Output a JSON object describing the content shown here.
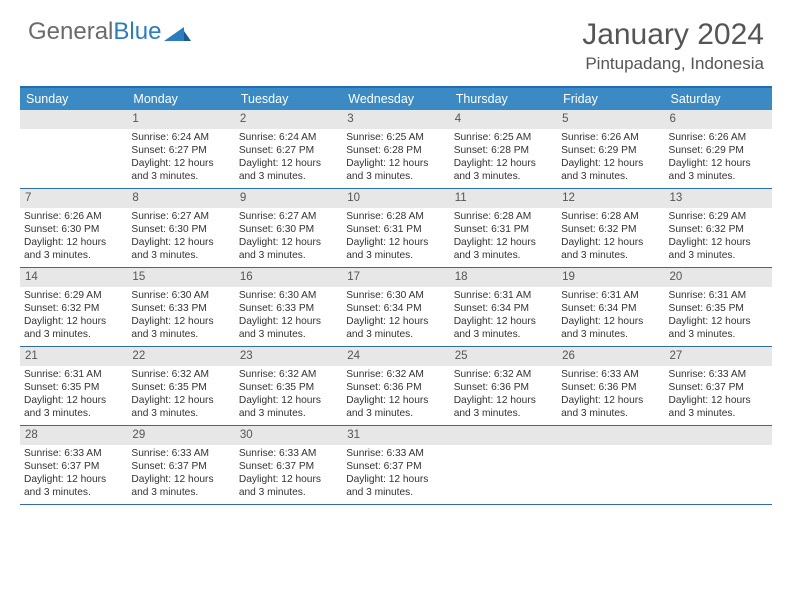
{
  "brand": {
    "part1": "General",
    "part2": "Blue"
  },
  "title": "January 2024",
  "location": "Pintupadang, Indonesia",
  "colors": {
    "header_bg": "#3b8ac4",
    "border": "#2f6fa8",
    "daynum_bg": "#e7e7e7",
    "text": "#333333",
    "title_text": "#555555"
  },
  "weekdays": [
    "Sunday",
    "Monday",
    "Tuesday",
    "Wednesday",
    "Thursday",
    "Friday",
    "Saturday"
  ],
  "start_offset": 1,
  "days": [
    {
      "n": 1,
      "sr": "6:24 AM",
      "ss": "6:27 PM",
      "dl": "12 hours and 3 minutes."
    },
    {
      "n": 2,
      "sr": "6:24 AM",
      "ss": "6:27 PM",
      "dl": "12 hours and 3 minutes."
    },
    {
      "n": 3,
      "sr": "6:25 AM",
      "ss": "6:28 PM",
      "dl": "12 hours and 3 minutes."
    },
    {
      "n": 4,
      "sr": "6:25 AM",
      "ss": "6:28 PM",
      "dl": "12 hours and 3 minutes."
    },
    {
      "n": 5,
      "sr": "6:26 AM",
      "ss": "6:29 PM",
      "dl": "12 hours and 3 minutes."
    },
    {
      "n": 6,
      "sr": "6:26 AM",
      "ss": "6:29 PM",
      "dl": "12 hours and 3 minutes."
    },
    {
      "n": 7,
      "sr": "6:26 AM",
      "ss": "6:30 PM",
      "dl": "12 hours and 3 minutes."
    },
    {
      "n": 8,
      "sr": "6:27 AM",
      "ss": "6:30 PM",
      "dl": "12 hours and 3 minutes."
    },
    {
      "n": 9,
      "sr": "6:27 AM",
      "ss": "6:30 PM",
      "dl": "12 hours and 3 minutes."
    },
    {
      "n": 10,
      "sr": "6:28 AM",
      "ss": "6:31 PM",
      "dl": "12 hours and 3 minutes."
    },
    {
      "n": 11,
      "sr": "6:28 AM",
      "ss": "6:31 PM",
      "dl": "12 hours and 3 minutes."
    },
    {
      "n": 12,
      "sr": "6:28 AM",
      "ss": "6:32 PM",
      "dl": "12 hours and 3 minutes."
    },
    {
      "n": 13,
      "sr": "6:29 AM",
      "ss": "6:32 PM",
      "dl": "12 hours and 3 minutes."
    },
    {
      "n": 14,
      "sr": "6:29 AM",
      "ss": "6:32 PM",
      "dl": "12 hours and 3 minutes."
    },
    {
      "n": 15,
      "sr": "6:30 AM",
      "ss": "6:33 PM",
      "dl": "12 hours and 3 minutes."
    },
    {
      "n": 16,
      "sr": "6:30 AM",
      "ss": "6:33 PM",
      "dl": "12 hours and 3 minutes."
    },
    {
      "n": 17,
      "sr": "6:30 AM",
      "ss": "6:34 PM",
      "dl": "12 hours and 3 minutes."
    },
    {
      "n": 18,
      "sr": "6:31 AM",
      "ss": "6:34 PM",
      "dl": "12 hours and 3 minutes."
    },
    {
      "n": 19,
      "sr": "6:31 AM",
      "ss": "6:34 PM",
      "dl": "12 hours and 3 minutes."
    },
    {
      "n": 20,
      "sr": "6:31 AM",
      "ss": "6:35 PM",
      "dl": "12 hours and 3 minutes."
    },
    {
      "n": 21,
      "sr": "6:31 AM",
      "ss": "6:35 PM",
      "dl": "12 hours and 3 minutes."
    },
    {
      "n": 22,
      "sr": "6:32 AM",
      "ss": "6:35 PM",
      "dl": "12 hours and 3 minutes."
    },
    {
      "n": 23,
      "sr": "6:32 AM",
      "ss": "6:35 PM",
      "dl": "12 hours and 3 minutes."
    },
    {
      "n": 24,
      "sr": "6:32 AM",
      "ss": "6:36 PM",
      "dl": "12 hours and 3 minutes."
    },
    {
      "n": 25,
      "sr": "6:32 AM",
      "ss": "6:36 PM",
      "dl": "12 hours and 3 minutes."
    },
    {
      "n": 26,
      "sr": "6:33 AM",
      "ss": "6:36 PM",
      "dl": "12 hours and 3 minutes."
    },
    {
      "n": 27,
      "sr": "6:33 AM",
      "ss": "6:37 PM",
      "dl": "12 hours and 3 minutes."
    },
    {
      "n": 28,
      "sr": "6:33 AM",
      "ss": "6:37 PM",
      "dl": "12 hours and 3 minutes."
    },
    {
      "n": 29,
      "sr": "6:33 AM",
      "ss": "6:37 PM",
      "dl": "12 hours and 3 minutes."
    },
    {
      "n": 30,
      "sr": "6:33 AM",
      "ss": "6:37 PM",
      "dl": "12 hours and 3 minutes."
    },
    {
      "n": 31,
      "sr": "6:33 AM",
      "ss": "6:37 PM",
      "dl": "12 hours and 3 minutes."
    }
  ],
  "labels": {
    "sunrise": "Sunrise: ",
    "sunset": "Sunset: ",
    "daylight": "Daylight: "
  }
}
